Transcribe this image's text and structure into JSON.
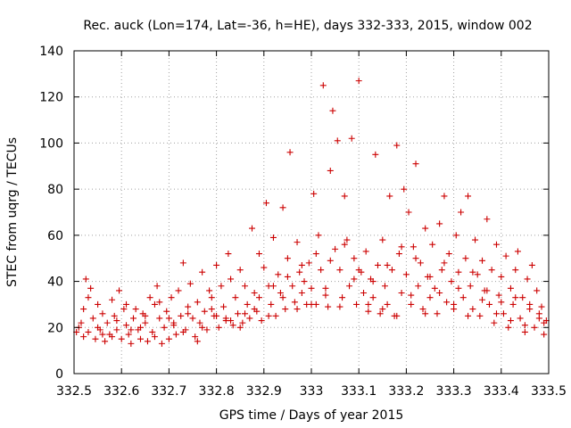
{
  "chart_data": {
    "type": "scatter",
    "title": "Rec. auck (Lon=174, Lat=-36, h=HE), days 332-333, 2015, window 002",
    "xlabel": "GPS time / Days of year 2015",
    "ylabel": "STEC from uqrg / TECUs",
    "xlim": [
      332.5,
      333.5
    ],
    "ylim": [
      0,
      140
    ],
    "x_ticks": [
      "332.5",
      "332.6",
      "332.7",
      "332.8",
      "332.9",
      "333",
      "333.1",
      "333.2",
      "333.3",
      "333.4",
      "333.5"
    ],
    "y_ticks": [
      "0",
      "20",
      "40",
      "60",
      "80",
      "100",
      "120",
      "140"
    ],
    "grid": true,
    "marker": "+",
    "color": "#cc0000",
    "series": [
      {
        "name": "STEC",
        "points": [
          [
            332.505,
            18
          ],
          [
            332.51,
            20
          ],
          [
            332.515,
            22
          ],
          [
            332.52,
            16
          ],
          [
            332.525,
            41
          ],
          [
            332.53,
            33
          ],
          [
            332.535,
            37
          ],
          [
            332.54,
            24
          ],
          [
            332.545,
            15
          ],
          [
            332.55,
            30
          ],
          [
            332.555,
            19
          ],
          [
            332.56,
            26
          ],
          [
            332.565,
            14
          ],
          [
            332.57,
            22
          ],
          [
            332.575,
            17
          ],
          [
            332.58,
            32
          ],
          [
            332.585,
            25
          ],
          [
            332.59,
            19
          ],
          [
            332.595,
            36
          ],
          [
            332.6,
            15
          ],
          [
            332.605,
            28
          ],
          [
            332.61,
            21
          ],
          [
            332.615,
            17
          ],
          [
            332.62,
            13
          ],
          [
            332.625,
            24
          ],
          [
            332.63,
            28
          ],
          [
            332.635,
            19
          ],
          [
            332.64,
            15
          ],
          [
            332.645,
            26
          ],
          [
            332.65,
            22
          ],
          [
            332.655,
            14
          ],
          [
            332.66,
            33
          ],
          [
            332.665,
            18
          ],
          [
            332.67,
            30
          ],
          [
            332.675,
            38
          ],
          [
            332.68,
            24
          ],
          [
            332.685,
            13
          ],
          [
            332.69,
            20
          ],
          [
            332.695,
            27
          ],
          [
            332.7,
            15
          ],
          [
            332.705,
            33
          ],
          [
            332.71,
            22
          ],
          [
            332.715,
            17
          ],
          [
            332.72,
            36
          ],
          [
            332.725,
            25
          ],
          [
            332.73,
            48
          ],
          [
            332.735,
            19
          ],
          [
            332.74,
            29
          ],
          [
            332.745,
            39
          ],
          [
            332.75,
            24
          ],
          [
            332.755,
            16
          ],
          [
            332.76,
            31
          ],
          [
            332.765,
            22
          ],
          [
            332.77,
            44
          ],
          [
            332.775,
            27
          ],
          [
            332.78,
            19
          ],
          [
            332.785,
            36
          ],
          [
            332.79,
            33
          ],
          [
            332.795,
            25
          ],
          [
            332.8,
            47
          ],
          [
            332.805,
            20
          ],
          [
            332.81,
            38
          ],
          [
            332.815,
            29
          ],
          [
            332.82,
            23
          ],
          [
            332.825,
            52
          ],
          [
            332.83,
            41
          ],
          [
            332.835,
            21
          ],
          [
            332.84,
            33
          ],
          [
            332.845,
            26
          ],
          [
            332.85,
            45
          ],
          [
            332.855,
            22
          ],
          [
            332.86,
            38
          ],
          [
            332.865,
            30
          ],
          [
            332.87,
            24
          ],
          [
            332.875,
            63
          ],
          [
            332.88,
            35
          ],
          [
            332.885,
            27
          ],
          [
            332.89,
            52
          ],
          [
            332.895,
            23
          ],
          [
            332.9,
            46
          ],
          [
            332.905,
            74
          ],
          [
            332.91,
            38
          ],
          [
            332.915,
            30
          ],
          [
            332.92,
            59
          ],
          [
            332.925,
            25
          ],
          [
            332.93,
            43
          ],
          [
            332.935,
            35
          ],
          [
            332.94,
            72
          ],
          [
            332.945,
            28
          ],
          [
            332.95,
            50
          ],
          [
            332.955,
            96
          ],
          [
            332.96,
            38
          ],
          [
            332.965,
            31
          ],
          [
            332.97,
            57
          ],
          [
            332.975,
            44
          ],
          [
            332.98,
            35
          ],
          [
            332.985,
            40
          ],
          [
            332.99,
            30
          ],
          [
            332.995,
            48
          ],
          [
            333.0,
            37
          ],
          [
            333.005,
            78
          ],
          [
            333.01,
            30
          ],
          [
            333.015,
            60
          ],
          [
            333.02,
            45
          ],
          [
            333.025,
            125
          ],
          [
            333.03,
            37
          ],
          [
            333.035,
            29
          ],
          [
            333.04,
            88
          ],
          [
            333.045,
            114
          ],
          [
            333.05,
            54
          ],
          [
            333.055,
            101
          ],
          [
            333.06,
            45
          ],
          [
            333.065,
            33
          ],
          [
            333.07,
            77
          ],
          [
            333.075,
            58
          ],
          [
            333.08,
            38
          ],
          [
            333.085,
            102
          ],
          [
            333.09,
            50
          ],
          [
            333.095,
            30
          ],
          [
            333.1,
            127
          ],
          [
            333.105,
            44
          ],
          [
            333.11,
            35
          ],
          [
            333.115,
            53
          ],
          [
            333.12,
            27
          ],
          [
            333.125,
            41
          ],
          [
            333.13,
            33
          ],
          [
            333.135,
            95
          ],
          [
            333.14,
            47
          ],
          [
            333.145,
            26
          ],
          [
            333.15,
            58
          ],
          [
            333.155,
            38
          ],
          [
            333.16,
            30
          ],
          [
            333.165,
            77
          ],
          [
            333.17,
            45
          ],
          [
            333.175,
            25
          ],
          [
            333.18,
            99
          ],
          [
            333.185,
            52
          ],
          [
            333.19,
            35
          ],
          [
            333.195,
            80
          ],
          [
            333.2,
            43
          ],
          [
            333.205,
            70
          ],
          [
            333.21,
            30
          ],
          [
            333.215,
            55
          ],
          [
            333.22,
            91
          ],
          [
            333.225,
            38
          ],
          [
            333.23,
            48
          ],
          [
            333.235,
            28
          ],
          [
            333.24,
            63
          ],
          [
            333.245,
            42
          ],
          [
            333.25,
            33
          ],
          [
            333.255,
            56
          ],
          [
            333.26,
            37
          ],
          [
            333.265,
            26
          ],
          [
            333.27,
            65
          ],
          [
            333.275,
            45
          ],
          [
            333.28,
            77
          ],
          [
            333.285,
            31
          ],
          [
            333.29,
            52
          ],
          [
            333.295,
            40
          ],
          [
            333.3,
            28
          ],
          [
            333.305,
            60
          ],
          [
            333.31,
            44
          ],
          [
            333.315,
            70
          ],
          [
            333.32,
            33
          ],
          [
            333.325,
            50
          ],
          [
            333.33,
            77
          ],
          [
            333.335,
            38
          ],
          [
            333.34,
            28
          ],
          [
            333.345,
            58
          ],
          [
            333.35,
            43
          ],
          [
            333.355,
            25
          ],
          [
            333.36,
            49
          ],
          [
            333.365,
            36
          ],
          [
            333.37,
            67
          ],
          [
            333.375,
            30
          ],
          [
            333.38,
            45
          ],
          [
            333.385,
            22
          ],
          [
            333.39,
            56
          ],
          [
            333.395,
            34
          ],
          [
            333.4,
            42
          ],
          [
            333.405,
            26
          ],
          [
            333.41,
            51
          ],
          [
            333.415,
            20
          ],
          [
            333.42,
            37
          ],
          [
            333.425,
            30
          ],
          [
            333.43,
            45
          ],
          [
            333.435,
            53
          ],
          [
            333.44,
            24
          ],
          [
            333.445,
            33
          ],
          [
            333.45,
            18
          ],
          [
            333.455,
            41
          ],
          [
            333.46,
            28
          ],
          [
            333.465,
            47
          ],
          [
            333.47,
            20
          ],
          [
            333.475,
            36
          ],
          [
            333.48,
            24
          ],
          [
            333.485,
            29
          ],
          [
            333.49,
            17
          ],
          [
            333.495,
            23
          ],
          [
            332.52,
            28
          ],
          [
            332.55,
            20
          ],
          [
            332.58,
            16
          ],
          [
            332.61,
            30
          ],
          [
            332.64,
            20
          ],
          [
            332.67,
            16
          ],
          [
            332.7,
            24
          ],
          [
            332.73,
            18
          ],
          [
            332.76,
            14
          ],
          [
            332.79,
            28
          ],
          [
            332.82,
            24
          ],
          [
            332.85,
            20
          ],
          [
            332.88,
            28
          ],
          [
            332.91,
            25
          ],
          [
            332.94,
            33
          ],
          [
            332.97,
            28
          ],
          [
            333.0,
            30
          ],
          [
            333.03,
            34
          ],
          [
            333.06,
            29
          ],
          [
            333.09,
            41
          ],
          [
            333.12,
            30
          ],
          [
            333.15,
            28
          ],
          [
            333.18,
            25
          ],
          [
            333.21,
            34
          ],
          [
            333.24,
            26
          ],
          [
            333.27,
            35
          ],
          [
            333.3,
            30
          ],
          [
            333.33,
            25
          ],
          [
            333.36,
            32
          ],
          [
            333.39,
            26
          ],
          [
            333.42,
            23
          ],
          [
            333.45,
            21
          ],
          [
            333.48,
            26
          ],
          [
            332.53,
            18
          ],
          [
            332.56,
            17
          ],
          [
            332.59,
            23
          ],
          [
            332.62,
            19
          ],
          [
            332.65,
            25
          ],
          [
            332.68,
            31
          ],
          [
            332.71,
            21
          ],
          [
            332.74,
            26
          ],
          [
            332.77,
            20
          ],
          [
            332.8,
            25
          ],
          [
            332.83,
            23
          ],
          [
            332.86,
            26
          ],
          [
            332.89,
            33
          ],
          [
            332.92,
            38
          ],
          [
            332.95,
            42
          ],
          [
            332.98,
            47
          ],
          [
            333.01,
            52
          ],
          [
            333.04,
            49
          ],
          [
            333.07,
            56
          ],
          [
            333.1,
            45
          ],
          [
            333.13,
            40
          ],
          [
            333.16,
            47
          ],
          [
            333.19,
            55
          ],
          [
            333.22,
            50
          ],
          [
            333.25,
            42
          ],
          [
            333.28,
            48
          ],
          [
            333.31,
            37
          ],
          [
            333.34,
            44
          ],
          [
            333.37,
            36
          ],
          [
            333.4,
            31
          ],
          [
            333.43,
            33
          ],
          [
            333.46,
            30
          ],
          [
            333.49,
            22
          ]
        ]
      }
    ]
  }
}
